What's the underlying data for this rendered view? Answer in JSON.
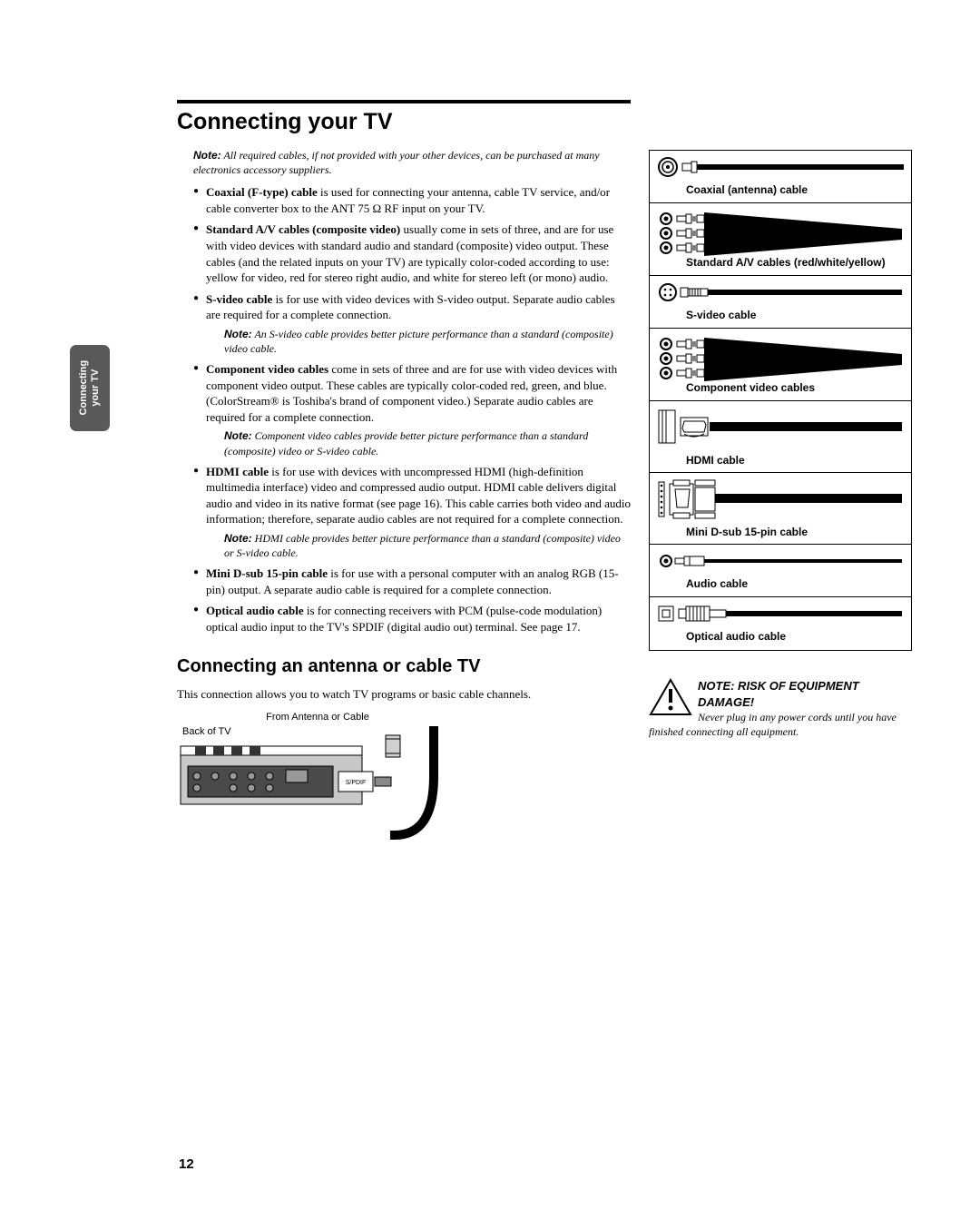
{
  "side_tab": {
    "line1": "Connecting",
    "line2": "your TV"
  },
  "h1": "Connecting your TV",
  "intro_note_bold": "Note:",
  "intro_note_text": " All required cables, if not provided with your other devices, can be purchased at many electronics accessory suppliers.",
  "bullets": [
    {
      "bold": "Coaxial (F-type) cable",
      "rest": " is used for connecting your antenna, cable TV service, and/or cable converter box to the ANT 75 Ω RF input on your TV."
    },
    {
      "bold": "Standard A/V cables (composite video)",
      "rest": " usually come in sets of three, and are for use with video devices with standard audio and standard (composite) video output. These cables (and the related inputs on your TV) are typically color-coded according to use: yellow for video, red for stereo right audio, and white for stereo left (or mono) audio."
    },
    {
      "bold": "S-video cable",
      "rest": " is for use with video devices with S-video output. Separate audio cables are required for a complete connection.",
      "note_bold": "Note:",
      "note_text": " An S-video cable provides better picture performance than a standard (composite) video cable."
    },
    {
      "bold": "Component video cables",
      "rest": " come in sets of three and are for use with video devices with component video output. These cables are typically color-coded red, green, and blue. (ColorStream® is Toshiba's brand of component video.) Separate audio cables are required for a complete connection.",
      "note_bold": "Note:",
      "note_text": " Component video cables provide better picture performance than a standard (composite) video or S-video cable."
    },
    {
      "bold": "HDMI cable",
      "rest": " is for use with devices with uncompressed HDMI (high-definition multimedia interface) video and compressed audio output. HDMI cable delivers digital audio and video in its native format (see page 16). This cable carries both video and audio information; therefore, separate audio cables are not required for a complete connection.",
      "note_bold": "Note:",
      "note_text": " HDMI cable provides better picture performance than a standard (composite) video or S-video cable."
    },
    {
      "bold": "Mini D-sub 15-pin cable",
      "rest": " is for use with a personal computer with an analog RGB (15-pin) output. A separate audio cable is required for a complete connection."
    },
    {
      "bold": "Optical audio cable",
      "rest": " is for connecting receivers with PCM (pulse-code modulation) optical audio input to the TV's SPDIF (digital audio out) terminal. See page 17."
    }
  ],
  "h2": "Connecting an antenna or cable TV",
  "body_p": "This connection allows you to watch TV programs or basic cable channels.",
  "diagram_top_label": "From Antenna or Cable",
  "diagram_back_label": "Back of TV",
  "cables": [
    {
      "label": "Coaxial (antenna) cable",
      "type": "coax"
    },
    {
      "label": "Standard A/V cables (red/white/yellow)",
      "type": "av3"
    },
    {
      "label": "S-video cable",
      "type": "svideo"
    },
    {
      "label": "Component video cables",
      "type": "av3"
    },
    {
      "label": "HDMI cable",
      "type": "hdmi"
    },
    {
      "label": "Mini D-sub 15-pin cable",
      "type": "vga"
    },
    {
      "label": "Audio cable",
      "type": "audio"
    },
    {
      "label": "Optical audio cable",
      "type": "optical"
    }
  ],
  "warn_heading": "NOTE: RISK OF EQUIPMENT DAMAGE!",
  "warn_body": "Never plug in any power cords until you have finished connecting all equipment.",
  "page_number": "12",
  "colors": {
    "tab_bg": "#595959",
    "text": "#000000",
    "cable_black": "#000000"
  }
}
